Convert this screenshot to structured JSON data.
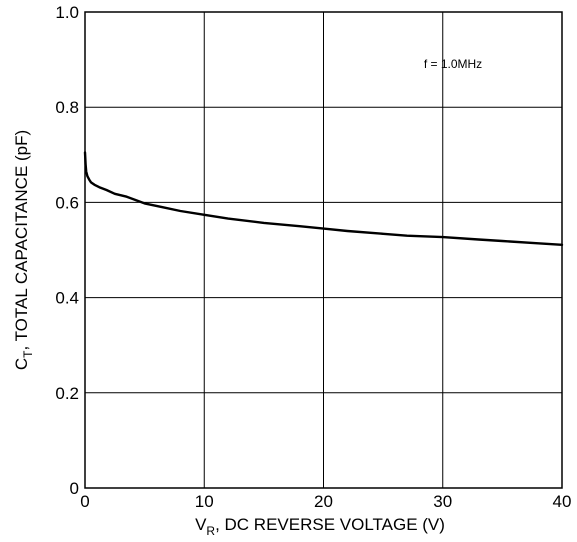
{
  "chart_data": {
    "type": "line",
    "xlabel": {
      "main": "V",
      "sub": "R",
      "rest": ", DC REVERSE VOLTAGE (V)"
    },
    "ylabel": {
      "main": "C",
      "sub": "T",
      "rest": ", TOTAL CAPACITANCE (pF)"
    },
    "xlim": [
      0,
      40
    ],
    "ylim": [
      0,
      1.0
    ],
    "xticks": [
      "0",
      "10",
      "20",
      "30",
      "40"
    ],
    "yticks": [
      "0",
      "0.2",
      "0.4",
      "0.6",
      "0.8",
      "1.0"
    ],
    "grid": true,
    "annotation": "f = 1.0MHz",
    "series": [
      {
        "x": [
          0.0,
          0.05,
          0.1,
          0.2,
          0.35,
          0.5,
          0.8,
          1.2,
          1.8,
          2.5,
          3.5,
          5,
          6.5,
          8,
          10,
          12,
          15,
          18,
          20,
          22,
          25,
          27,
          30,
          33,
          35,
          38,
          40
        ],
        "y": [
          0.705,
          0.68,
          0.665,
          0.655,
          0.648,
          0.642,
          0.637,
          0.632,
          0.626,
          0.618,
          0.612,
          0.598,
          0.59,
          0.582,
          0.574,
          0.566,
          0.557,
          0.55,
          0.545,
          0.54,
          0.534,
          0.53,
          0.527,
          0.522,
          0.519,
          0.514,
          0.511
        ]
      }
    ]
  }
}
